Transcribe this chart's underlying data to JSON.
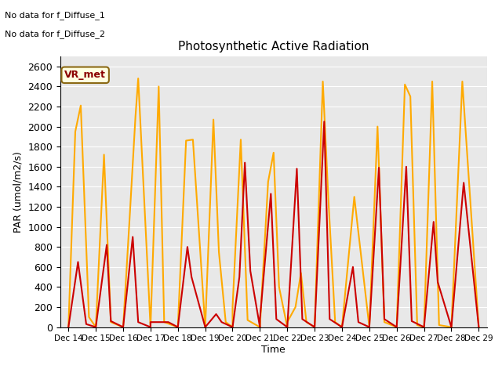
{
  "title": "Photosynthetic Active Radiation",
  "xlabel": "Time",
  "ylabel": "PAR (umol/m2/s)",
  "annotations": [
    "No data for f_Diffuse_1",
    "No data for f_Diffuse_2"
  ],
  "legend_label1": "VR_met",
  "color_par_in": "#cc0000",
  "color_par_out": "#ffaa00",
  "ylim": [
    0,
    2700
  ],
  "background_color": "#e8e8e8",
  "x_labels": [
    "Dec 14",
    "Dec 15",
    "Dec 16",
    "Dec 17",
    "Dec 18",
    "Dec 19",
    "Dec 20",
    "Dec 21",
    "Dec 22",
    "Dec 23",
    "Dec 24",
    "Dec 25",
    "Dec 26",
    "Dec 27",
    "Dec 28",
    "Dec 29"
  ],
  "par_in_data": [
    [
      0,
      0
    ],
    [
      0.35,
      650
    ],
    [
      0.65,
      30
    ],
    [
      1.0,
      0
    ],
    [
      1.0,
      0
    ],
    [
      1.4,
      820
    ],
    [
      1.55,
      60
    ],
    [
      2.0,
      0
    ],
    [
      2.0,
      0
    ],
    [
      2.35,
      900
    ],
    [
      2.55,
      50
    ],
    [
      3.0,
      0
    ],
    [
      3.0,
      50
    ],
    [
      3.35,
      50
    ],
    [
      3.65,
      50
    ],
    [
      4.0,
      0
    ],
    [
      4.0,
      0
    ],
    [
      4.35,
      800
    ],
    [
      4.5,
      500
    ],
    [
      5.0,
      0
    ],
    [
      5.0,
      0
    ],
    [
      5.4,
      130
    ],
    [
      5.6,
      50
    ],
    [
      6.0,
      0
    ],
    [
      6.0,
      0
    ],
    [
      6.25,
      500
    ],
    [
      6.45,
      1640
    ],
    [
      6.65,
      560
    ],
    [
      7.0,
      0
    ],
    [
      7.0,
      80
    ],
    [
      7.4,
      1330
    ],
    [
      7.6,
      80
    ],
    [
      8.0,
      0
    ],
    [
      8.0,
      0
    ],
    [
      8.35,
      1580
    ],
    [
      8.55,
      80
    ],
    [
      9.0,
      0
    ],
    [
      9.0,
      0
    ],
    [
      9.35,
      2050
    ],
    [
      9.55,
      80
    ],
    [
      10.0,
      0
    ],
    [
      10.0,
      0
    ],
    [
      10.4,
      600
    ],
    [
      10.6,
      50
    ],
    [
      11.0,
      0
    ],
    [
      11.0,
      0
    ],
    [
      11.35,
      1590
    ],
    [
      11.55,
      80
    ],
    [
      12.0,
      0
    ],
    [
      12.0,
      0
    ],
    [
      12.35,
      1600
    ],
    [
      12.55,
      60
    ],
    [
      13.0,
      0
    ],
    [
      13.0,
      0
    ],
    [
      13.35,
      1050
    ],
    [
      13.5,
      450
    ],
    [
      14.0,
      0
    ],
    [
      14.0,
      0
    ],
    [
      14.45,
      1440
    ],
    [
      15.0,
      0
    ]
  ],
  "par_out_data": [
    [
      0,
      0
    ],
    [
      0.25,
      1950
    ],
    [
      0.45,
      2210
    ],
    [
      0.75,
      100
    ],
    [
      1.0,
      0
    ],
    [
      1.0,
      0
    ],
    [
      1.3,
      1720
    ],
    [
      1.55,
      50
    ],
    [
      2.0,
      0
    ],
    [
      2.0,
      0
    ],
    [
      2.25,
      1150
    ],
    [
      2.45,
      2100
    ],
    [
      2.55,
      2480
    ],
    [
      3.0,
      0
    ],
    [
      3.0,
      0
    ],
    [
      3.3,
      2400
    ],
    [
      3.5,
      50
    ],
    [
      4.0,
      0
    ],
    [
      4.0,
      0
    ],
    [
      4.3,
      1860
    ],
    [
      4.55,
      1870
    ],
    [
      5.0,
      0
    ],
    [
      5.0,
      0
    ],
    [
      5.3,
      2070
    ],
    [
      5.5,
      750
    ],
    [
      5.75,
      50
    ],
    [
      6.0,
      0
    ],
    [
      6.0,
      200
    ],
    [
      6.3,
      1870
    ],
    [
      6.55,
      70
    ],
    [
      7.0,
      0
    ],
    [
      7.0,
      0
    ],
    [
      7.3,
      1450
    ],
    [
      7.5,
      1740
    ],
    [
      7.7,
      400
    ],
    [
      8.0,
      0
    ],
    [
      8.0,
      50
    ],
    [
      8.3,
      200
    ],
    [
      8.5,
      540
    ],
    [
      8.7,
      50
    ],
    [
      9.0,
      0
    ],
    [
      9.0,
      0
    ],
    [
      9.3,
      2450
    ],
    [
      9.5,
      1290
    ],
    [
      9.75,
      50
    ],
    [
      10.0,
      0
    ],
    [
      10.0,
      0
    ],
    [
      10.45,
      1300
    ],
    [
      11.0,
      0
    ],
    [
      11.0,
      0
    ],
    [
      11.3,
      2000
    ],
    [
      11.55,
      50
    ],
    [
      12.0,
      0
    ],
    [
      12.0,
      0
    ],
    [
      12.3,
      2420
    ],
    [
      12.5,
      2300
    ],
    [
      12.75,
      20
    ],
    [
      13.0,
      0
    ],
    [
      13.0,
      0
    ],
    [
      13.3,
      2450
    ],
    [
      13.55,
      20
    ],
    [
      14.0,
      0
    ],
    [
      14.0,
      0
    ],
    [
      14.4,
      2450
    ],
    [
      15.0,
      0
    ]
  ]
}
